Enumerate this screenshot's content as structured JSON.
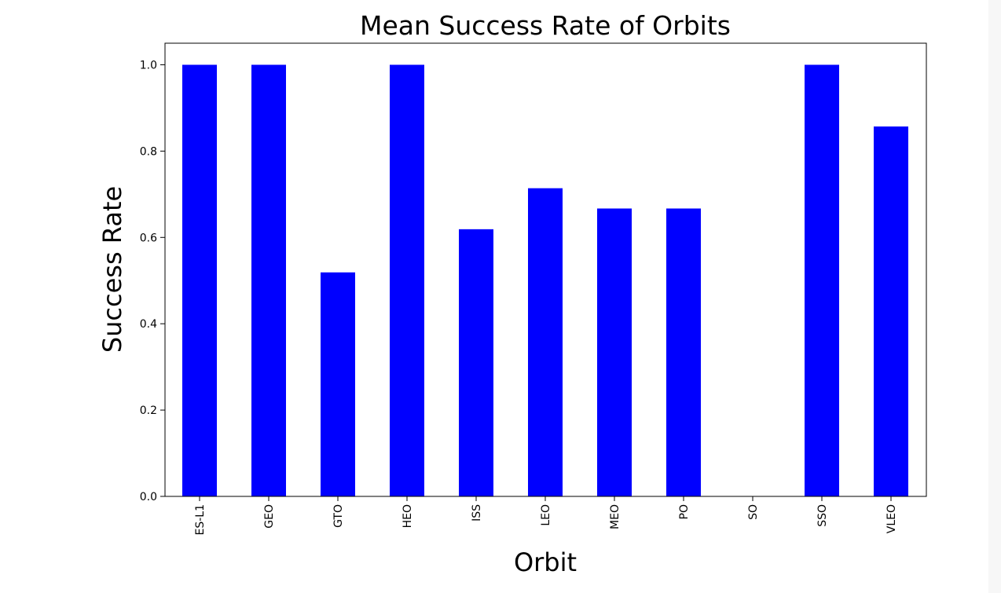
{
  "chart_data": {
    "type": "bar",
    "title": "Mean Success Rate of Orbits",
    "xlabel": "Orbit",
    "ylabel": "Success Rate",
    "categories": [
      "ES-L1",
      "GEO",
      "GTO",
      "HEO",
      "ISS",
      "LEO",
      "MEO",
      "PO",
      "SO",
      "SSO",
      "VLEO"
    ],
    "values": [
      1.0,
      1.0,
      0.519,
      1.0,
      0.619,
      0.714,
      0.667,
      0.667,
      0.0,
      1.0,
      0.857
    ],
    "ylim": [
      0,
      1.05
    ],
    "yticks": [
      "0.0",
      "0.2",
      "0.4",
      "0.6",
      "0.8",
      "1.0"
    ],
    "bar_color": "#0000ff",
    "grid": false,
    "legend": "none"
  }
}
